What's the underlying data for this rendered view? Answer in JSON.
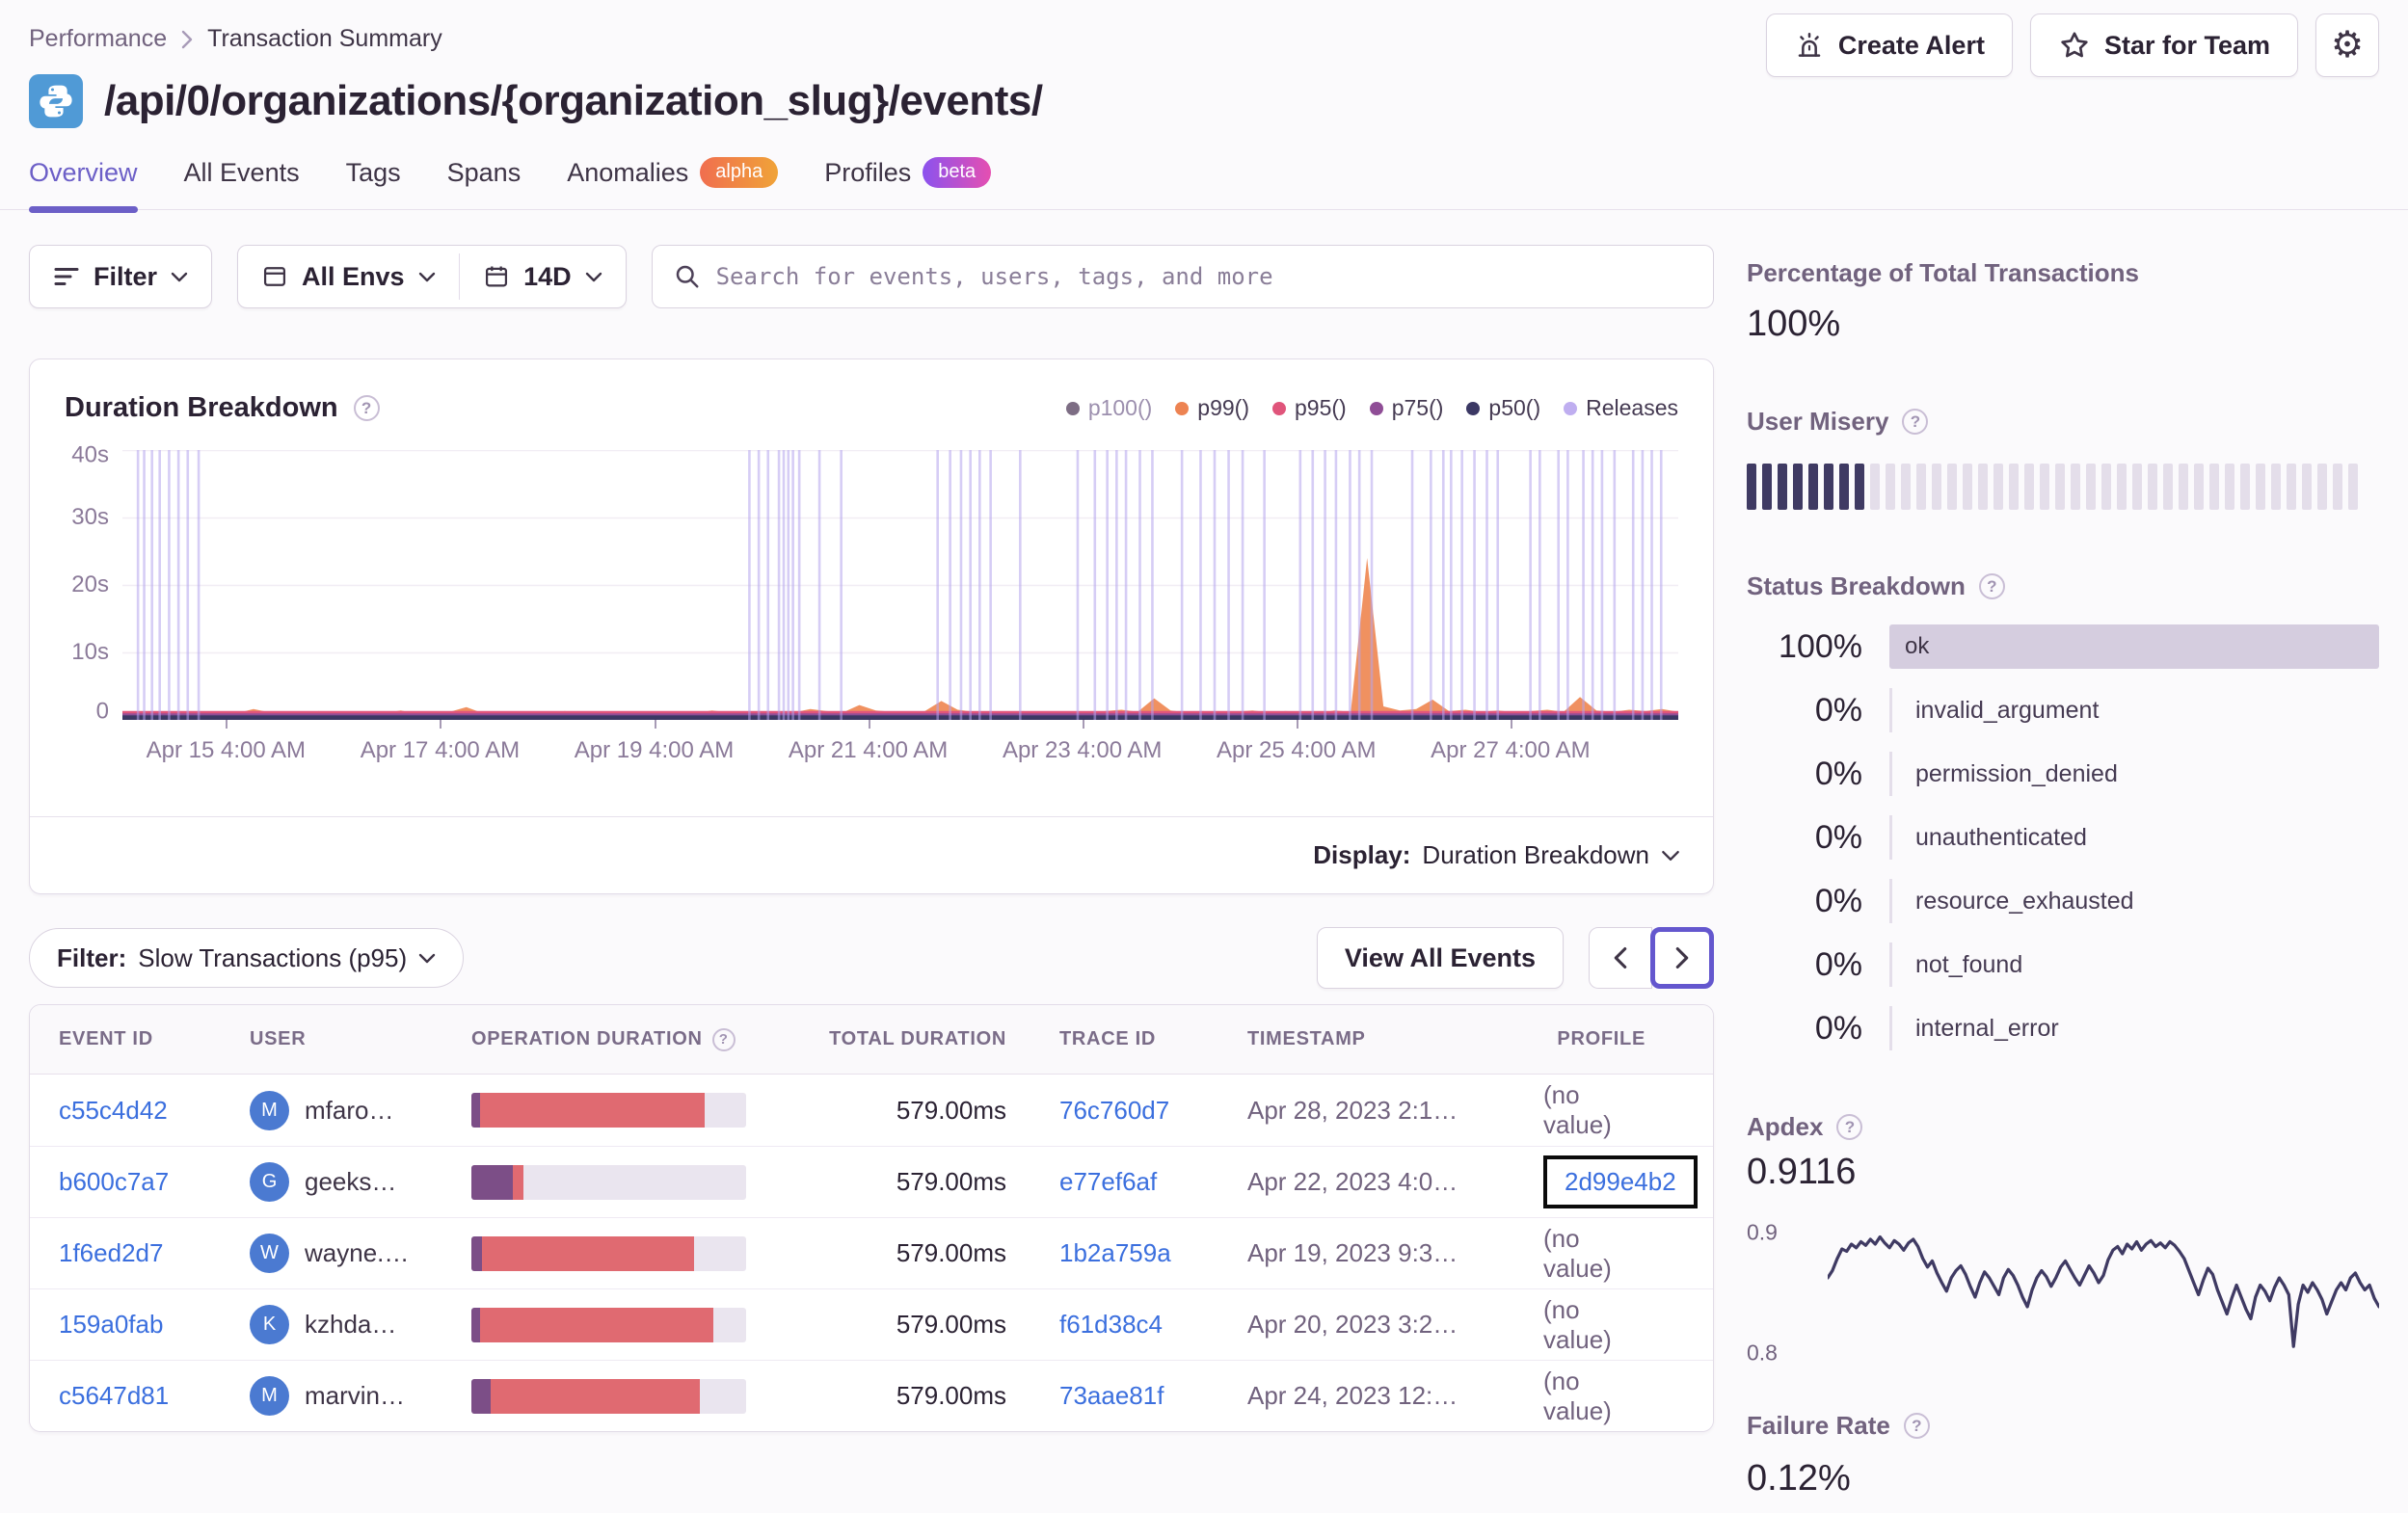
{
  "colors": {
    "accent": "#6C5FC7",
    "link": "#3B6FDE",
    "alpha_badge": [
      "#F06E4F",
      "#F0A338"
    ],
    "beta_badge": [
      "#8B52EE",
      "#E54FB1"
    ],
    "release_line": "#B5A4EC",
    "avatar": "#4B7AD1"
  },
  "breadcrumb": {
    "section": "Performance",
    "current": "Transaction Summary"
  },
  "header": {
    "title": "/api/0/organizations/{organization_slug}/events/",
    "create_alert": "Create Alert",
    "star_for_team": "Star for Team"
  },
  "tabs": [
    {
      "label": "Overview",
      "active": true
    },
    {
      "label": "All Events"
    },
    {
      "label": "Tags"
    },
    {
      "label": "Spans"
    },
    {
      "label": "Anomalies",
      "badge": "alpha"
    },
    {
      "label": "Profiles",
      "badge": "beta"
    }
  ],
  "filter_bar": {
    "filter": "Filter",
    "environment": "All Envs",
    "date_range": "14D",
    "search_placeholder": "Search for events, users, tags, and more"
  },
  "duration_panel": {
    "title": "Duration Breakdown",
    "display_label": "Display:",
    "display_value": "Duration Breakdown"
  },
  "chart_data": [
    {
      "id": "duration-breakdown",
      "type": "area",
      "title": "Duration Breakdown",
      "ylim": [
        0,
        40
      ],
      "y_tick_values": [
        40,
        30,
        20,
        10,
        0
      ],
      "y_ticks": [
        "40s",
        "30s",
        "20s",
        "10s",
        "0"
      ],
      "x_ticks": [
        "Apr 15 4:00 AM",
        "Apr 17 4:00 AM",
        "Apr 19 4:00 AM",
        "Apr 21 4:00 AM",
        "Apr 23 4:00 AM",
        "Apr 25 4:00 AM",
        "Apr 27 4:00 AM"
      ],
      "legend": [
        {
          "label": "p100()",
          "color": "#7D6D84",
          "muted": true
        },
        {
          "label": "p99()",
          "color": "#ED8352"
        },
        {
          "label": "p95()",
          "color": "#E0557B"
        },
        {
          "label": "p75()",
          "color": "#8F4D96"
        },
        {
          "label": "p50()",
          "color": "#3B3864"
        },
        {
          "label": "Releases",
          "color": "#BFAEF0"
        }
      ],
      "series": [
        {
          "name": "p99()",
          "color": "#EF8B57",
          "unit": "s",
          "values": [
            0.8,
            1.0,
            0.9,
            1.1,
            0.8,
            0.9,
            1.2,
            1.0,
            1.6,
            1.1,
            0.9,
            1.0,
            1.3,
            0.9,
            0.8,
            1.1,
            1.0,
            1.4,
            0.9,
            1.0,
            1.2,
            1.9,
            1.0,
            0.9,
            1.1,
            0.8,
            1.0,
            1.3,
            1.1,
            0.9,
            1.2,
            1.0,
            0.8,
            1.1,
            0.9,
            1.0,
            1.4,
            1.1,
            0.9,
            1.2,
            1.0,
            1.1,
            1.6,
            1.3,
            1.1,
            2.2,
            1.4,
            1.2,
            1.0,
            1.3,
            2.8,
            1.5,
            1.2,
            1.0,
            1.1,
            1.3,
            1.0,
            1.2,
            1.1,
            0.9,
            1.3,
            1.5,
            1.2,
            3.2,
            1.4,
            1.1,
            1.3,
            1.0,
            1.2,
            1.4,
            1.1,
            1.3,
            1.2,
            1.0,
            1.4,
            1.2,
            24.0,
            2.0,
            1.4,
            1.6,
            3.0,
            1.3,
            1.5,
            1.2,
            1.4,
            1.1,
            1.3,
            1.5,
            1.2,
            3.4,
            1.4,
            1.2,
            1.5,
            1.3,
            1.6,
            1.2
          ]
        },
        {
          "name": "p95()",
          "color": "#E0557B",
          "flat": 0.55
        },
        {
          "name": "p75()",
          "color": "#8F4D96",
          "flat": 0.4
        },
        {
          "name": "p50()",
          "color": "#3B3864",
          "flat": 0.28
        }
      ],
      "releases_pct": [
        1.0,
        1.4,
        1.9,
        2.4,
        3.0,
        3.6,
        4.2,
        4.9,
        40.3,
        40.9,
        41.5,
        42.2,
        42.5,
        42.8,
        43.1,
        43.5,
        44.8,
        46.2,
        52.4,
        53.2,
        53.9,
        54.5,
        55.1,
        55.8,
        57.7,
        61.4,
        62.5,
        63.3,
        63.9,
        64.5,
        65.4,
        66.2,
        68.1,
        69.3,
        70.2,
        71.1,
        72.0,
        73.4,
        75.7,
        76.5,
        77.3,
        78.0,
        78.9,
        79.5,
        80.3,
        82.9,
        84.1,
        84.9,
        85.4,
        86.1,
        86.9,
        87.7,
        88.4,
        90.5,
        91.1,
        92.3,
        92.9,
        93.9,
        94.5,
        95.1,
        95.9,
        97.1,
        97.7,
        98.3,
        98.9
      ]
    },
    {
      "id": "apdex-trend",
      "type": "line",
      "color": "#3F3A63",
      "ylim": [
        0.79,
        0.91
      ],
      "y_ticks": [
        "0.9",
        "0.8"
      ],
      "y_tick_values": [
        0.9,
        0.8
      ],
      "values": [
        0.862,
        0.868,
        0.878,
        0.886,
        0.884,
        0.89,
        0.887,
        0.892,
        0.889,
        0.894,
        0.89,
        0.896,
        0.891,
        0.887,
        0.893,
        0.89,
        0.885,
        0.891,
        0.894,
        0.888,
        0.878,
        0.871,
        0.876,
        0.866,
        0.858,
        0.851,
        0.862,
        0.868,
        0.872,
        0.865,
        0.855,
        0.846,
        0.858,
        0.867,
        0.862,
        0.855,
        0.848,
        0.862,
        0.869,
        0.864,
        0.856,
        0.846,
        0.838,
        0.852,
        0.862,
        0.868,
        0.863,
        0.855,
        0.862,
        0.871,
        0.876,
        0.869,
        0.862,
        0.856,
        0.864,
        0.872,
        0.866,
        0.858,
        0.864,
        0.877,
        0.885,
        0.888,
        0.882,
        0.89,
        0.886,
        0.892,
        0.885,
        0.89,
        0.893,
        0.888,
        0.891,
        0.887,
        0.892,
        0.889,
        0.884,
        0.878,
        0.868,
        0.858,
        0.848,
        0.86,
        0.87,
        0.865,
        0.852,
        0.842,
        0.832,
        0.845,
        0.856,
        0.846,
        0.836,
        0.828,
        0.846,
        0.856,
        0.851,
        0.843,
        0.854,
        0.862,
        0.856,
        0.848,
        0.805,
        0.84,
        0.856,
        0.85,
        0.858,
        0.852,
        0.844,
        0.832,
        0.842,
        0.852,
        0.858,
        0.852,
        0.862,
        0.866,
        0.858,
        0.852,
        0.856,
        0.845,
        0.838
      ]
    }
  ],
  "events_section": {
    "filter_label": "Filter:",
    "filter_value": "Slow Transactions (p95)",
    "view_all": "View All Events"
  },
  "table": {
    "columns": [
      "EVENT ID",
      "USER",
      "OPERATION DURATION",
      "TOTAL DURATION",
      "TRACE ID",
      "TIMESTAMP",
      "PROFILE"
    ],
    "rows": [
      {
        "event_id": "c55c4d42",
        "user": "mfaro…",
        "initial": "M",
        "op_purple_pct": 3,
        "op_red_pct": 82,
        "total": "579.00ms",
        "trace": "76c760d7",
        "timestamp": "Apr 28, 2023 2:1…",
        "profile": "(no value)"
      },
      {
        "event_id": "b600c7a7",
        "user": "geeks…",
        "initial": "G",
        "op_purple_pct": 15,
        "op_red_pct": 4,
        "total": "579.00ms",
        "trace": "e77ef6af",
        "timestamp": "Apr 22, 2023 4:0…",
        "profile": "2d99e4b2",
        "profile_link": true,
        "profile_highlight": true
      },
      {
        "event_id": "1f6ed2d7",
        "user": "wayne.…",
        "initial": "W",
        "op_purple_pct": 4,
        "op_red_pct": 77,
        "total": "579.00ms",
        "trace": "1b2a759a",
        "timestamp": "Apr 19, 2023 9:3…",
        "profile": "(no value)"
      },
      {
        "event_id": "159a0fab",
        "user": "kzhda…",
        "initial": "K",
        "op_purple_pct": 3,
        "op_red_pct": 85,
        "total": "579.00ms",
        "trace": "f61d38c4",
        "timestamp": "Apr 20, 2023 3:2…",
        "profile": "(no value)"
      },
      {
        "event_id": "c5647d81",
        "user": "marvin…",
        "initial": "M",
        "op_purple_pct": 7,
        "op_red_pct": 76,
        "total": "579.00ms",
        "trace": "73aae81f",
        "timestamp": "Apr 24, 2023 12:…",
        "profile": "(no value)"
      }
    ]
  },
  "sidebar": {
    "total_transactions": {
      "heading": "Percentage of Total Transactions",
      "value": "100%"
    },
    "user_misery": {
      "heading": "User Misery",
      "total_bars": 40,
      "filled_bars": 8,
      "filled_color": "#3F3A63",
      "empty_color": "#E4DEEA"
    },
    "status_breakdown": {
      "heading": "Status Breakdown",
      "rows": [
        {
          "pct": "100%",
          "label": "ok",
          "bar": true
        },
        {
          "pct": "0%",
          "label": "invalid_argument"
        },
        {
          "pct": "0%",
          "label": "permission_denied"
        },
        {
          "pct": "0%",
          "label": "unauthenticated"
        },
        {
          "pct": "0%",
          "label": "resource_exhausted"
        },
        {
          "pct": "0%",
          "label": "not_found"
        },
        {
          "pct": "0%",
          "label": "internal_error"
        }
      ]
    },
    "apdex": {
      "heading": "Apdex",
      "value": "0.9116"
    },
    "failure_rate": {
      "heading": "Failure Rate",
      "value": "0.12%"
    }
  }
}
